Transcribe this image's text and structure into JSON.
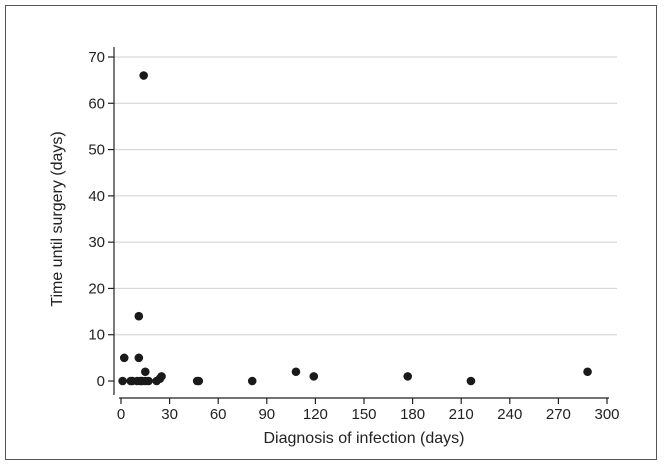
{
  "chart_data": {
    "type": "scatter",
    "title": "",
    "xlabel": "Diagnosis of infection (days)",
    "ylabel": "Time until surgery (days)",
    "xlim": [
      0,
      300
    ],
    "ylim": [
      0,
      70
    ],
    "xticks": [
      0,
      30,
      60,
      90,
      120,
      150,
      180,
      210,
      240,
      270,
      300
    ],
    "yticks": [
      0,
      10,
      20,
      30,
      40,
      50,
      60,
      70
    ],
    "grid": "horizontal",
    "legend": "none",
    "point_color": "#1a1a1a",
    "grid_color": "#d0d0d0",
    "points": [
      {
        "x": 1,
        "y": 0
      },
      {
        "x": 2,
        "y": 5
      },
      {
        "x": 6,
        "y": 0
      },
      {
        "x": 7,
        "y": 0
      },
      {
        "x": 10,
        "y": 0
      },
      {
        "x": 11,
        "y": 5
      },
      {
        "x": 11,
        "y": 14
      },
      {
        "x": 12,
        "y": 0
      },
      {
        "x": 13,
        "y": 0
      },
      {
        "x": 14,
        "y": 66
      },
      {
        "x": 15,
        "y": 2
      },
      {
        "x": 15,
        "y": 0
      },
      {
        "x": 17,
        "y": 0
      },
      {
        "x": 22,
        "y": 0
      },
      {
        "x": 24,
        "y": 0.5
      },
      {
        "x": 25,
        "y": 1
      },
      {
        "x": 47,
        "y": 0
      },
      {
        "x": 48,
        "y": 0
      },
      {
        "x": 81,
        "y": 0
      },
      {
        "x": 108,
        "y": 2
      },
      {
        "x": 119,
        "y": 1
      },
      {
        "x": 177,
        "y": 1
      },
      {
        "x": 216,
        "y": 0
      },
      {
        "x": 288,
        "y": 2
      }
    ]
  }
}
